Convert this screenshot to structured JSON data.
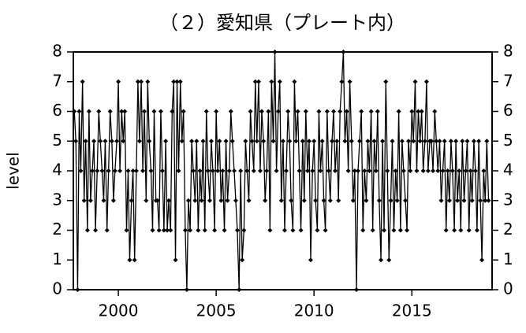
{
  "chart_data": {
    "type": "line",
    "title": "（２）愛知県（プレート内）",
    "ylabel": "level",
    "color": "#000000",
    "xlim": [
      1997.7,
      2019.1
    ],
    "ylim": [
      0,
      8
    ],
    "xticks": [
      2000,
      2005,
      2010,
      2015
    ],
    "yticks": [
      0,
      1,
      2,
      3,
      4,
      5,
      6,
      7,
      8
    ],
    "x": [
      1997.75,
      1997.83,
      1997.92,
      1998,
      1998.08,
      1998.17,
      1998.25,
      1998.33,
      1998.42,
      1998.5,
      1998.58,
      1998.67,
      1998.75,
      1998.83,
      1998.92,
      1999,
      1999.08,
      1999.17,
      1999.25,
      1999.33,
      1999.42,
      1999.5,
      1999.58,
      1999.67,
      1999.75,
      1999.83,
      1999.92,
      2000,
      2000.08,
      2000.17,
      2000.25,
      2000.33,
      2000.42,
      2000.5,
      2000.58,
      2000.67,
      2000.75,
      2000.83,
      2000.92,
      2001,
      2001.08,
      2001.17,
      2001.25,
      2001.33,
      2001.42,
      2001.5,
      2001.58,
      2001.67,
      2001.75,
      2001.83,
      2001.92,
      2002,
      2002.08,
      2002.17,
      2002.25,
      2002.33,
      2002.42,
      2002.5,
      2002.58,
      2002.67,
      2002.75,
      2002.83,
      2002.92,
      2003,
      2003.08,
      2003.17,
      2003.25,
      2003.33,
      2003.42,
      2003.5,
      2003.58,
      2003.67,
      2003.75,
      2003.83,
      2003.92,
      2004,
      2004.08,
      2004.17,
      2004.25,
      2004.33,
      2004.42,
      2004.5,
      2004.58,
      2004.67,
      2004.75,
      2004.83,
      2004.92,
      2005,
      2005.08,
      2005.17,
      2005.25,
      2005.33,
      2005.42,
      2005.5,
      2005.58,
      2005.67,
      2005.75,
      2005.83,
      2005.92,
      2006,
      2006.08,
      2006.17,
      2006.25,
      2006.33,
      2006.42,
      2006.5,
      2006.58,
      2006.67,
      2006.75,
      2006.83,
      2006.92,
      2007,
      2007.08,
      2007.17,
      2007.25,
      2007.33,
      2007.42,
      2007.5,
      2007.58,
      2007.67,
      2007.75,
      2007.83,
      2007.92,
      2008,
      2008.08,
      2008.17,
      2008.25,
      2008.33,
      2008.42,
      2008.5,
      2008.58,
      2008.67,
      2008.75,
      2008.83,
      2008.92,
      2009,
      2009.08,
      2009.17,
      2009.25,
      2009.33,
      2009.42,
      2009.5,
      2009.58,
      2009.67,
      2009.75,
      2009.83,
      2009.92,
      2010,
      2010.08,
      2010.17,
      2010.25,
      2010.33,
      2010.42,
      2010.5,
      2010.58,
      2010.67,
      2010.75,
      2010.83,
      2010.92,
      2011,
      2011.08,
      2011.17,
      2011.25,
      2011.33,
      2011.42,
      2011.5,
      2011.58,
      2011.67,
      2011.75,
      2011.83,
      2011.92,
      2012,
      2012.08,
      2012.17,
      2012.25,
      2012.33,
      2012.42,
      2012.5,
      2012.58,
      2012.67,
      2012.75,
      2012.83,
      2012.92,
      2013,
      2013.08,
      2013.17,
      2013.25,
      2013.33,
      2013.42,
      2013.5,
      2013.58,
      2013.67,
      2013.75,
      2013.83,
      2013.92,
      2014,
      2014.08,
      2014.17,
      2014.25,
      2014.33,
      2014.42,
      2014.5,
      2014.58,
      2014.67,
      2014.75,
      2014.83,
      2014.92,
      2015,
      2015.08,
      2015.17,
      2015.25,
      2015.33,
      2015.42,
      2015.5,
      2015.58,
      2015.67,
      2015.75,
      2015.83,
      2015.92,
      2016,
      2016.08,
      2016.17,
      2016.25,
      2016.33,
      2016.42,
      2016.5,
      2016.58,
      2016.67,
      2016.75,
      2016.83,
      2016.92,
      2017,
      2017.08,
      2017.17,
      2017.25,
      2017.33,
      2017.42,
      2017.5,
      2017.58,
      2017.67,
      2017.75,
      2017.83,
      2017.92,
      2018,
      2018.08,
      2018.17,
      2018.25,
      2018.33,
      2018.42,
      2018.5,
      2018.58,
      2018.67,
      2018.75,
      2018.83,
      2018.92
    ],
    "values": [
      6,
      5,
      0,
      6,
      4,
      7,
      3,
      5,
      2,
      6,
      3,
      4,
      5,
      2,
      4,
      6,
      5,
      4,
      3,
      5,
      2,
      4,
      6,
      5,
      3,
      4,
      5,
      7,
      4,
      6,
      5,
      6,
      2,
      4,
      1,
      3,
      4,
      1,
      4,
      7,
      5,
      7,
      4,
      6,
      3,
      7,
      5,
      4,
      2,
      6,
      3,
      3,
      2,
      6,
      4,
      2,
      5,
      2,
      3,
      2,
      6,
      7,
      1,
      7,
      4,
      7,
      5,
      6,
      2,
      0,
      3,
      2,
      5,
      4,
      3,
      5,
      2,
      4,
      3,
      5,
      2,
      6,
      4,
      3,
      5,
      4,
      2,
      6,
      4,
      5,
      3,
      4,
      2,
      5,
      3,
      4,
      6,
      5,
      4,
      3,
      2,
      0,
      4,
      1,
      2,
      5,
      4,
      3,
      6,
      5,
      4,
      7,
      5,
      7,
      4,
      6,
      5,
      3,
      4,
      6,
      2,
      7,
      5,
      8,
      4,
      6,
      7,
      3,
      5,
      2,
      4,
      6,
      5,
      3,
      2,
      7,
      5,
      6,
      4,
      2,
      5,
      3,
      6,
      4,
      5,
      1,
      4,
      5,
      3,
      2,
      6,
      4,
      5,
      3,
      2,
      6,
      4,
      3,
      5,
      6,
      4,
      5,
      3,
      6,
      7,
      8,
      5,
      6,
      4,
      7,
      5,
      3,
      4,
      0,
      4,
      5,
      6,
      2,
      4,
      3,
      5,
      4,
      6,
      2,
      5,
      4,
      6,
      3,
      1,
      5,
      2,
      7,
      4,
      1,
      3,
      5,
      2,
      4,
      3,
      6,
      2,
      5,
      4,
      3,
      2,
      5,
      4,
      6,
      5,
      7,
      4,
      6,
      5,
      6,
      4,
      5,
      7,
      4,
      5,
      5,
      4,
      6,
      5,
      4,
      5,
      3,
      4,
      5,
      2,
      4,
      3,
      5,
      4,
      2,
      5,
      3,
      4,
      2,
      5,
      3,
      4,
      5,
      2,
      4,
      3,
      5,
      4,
      2,
      5,
      3,
      1,
      4,
      3,
      5,
      3
    ]
  }
}
